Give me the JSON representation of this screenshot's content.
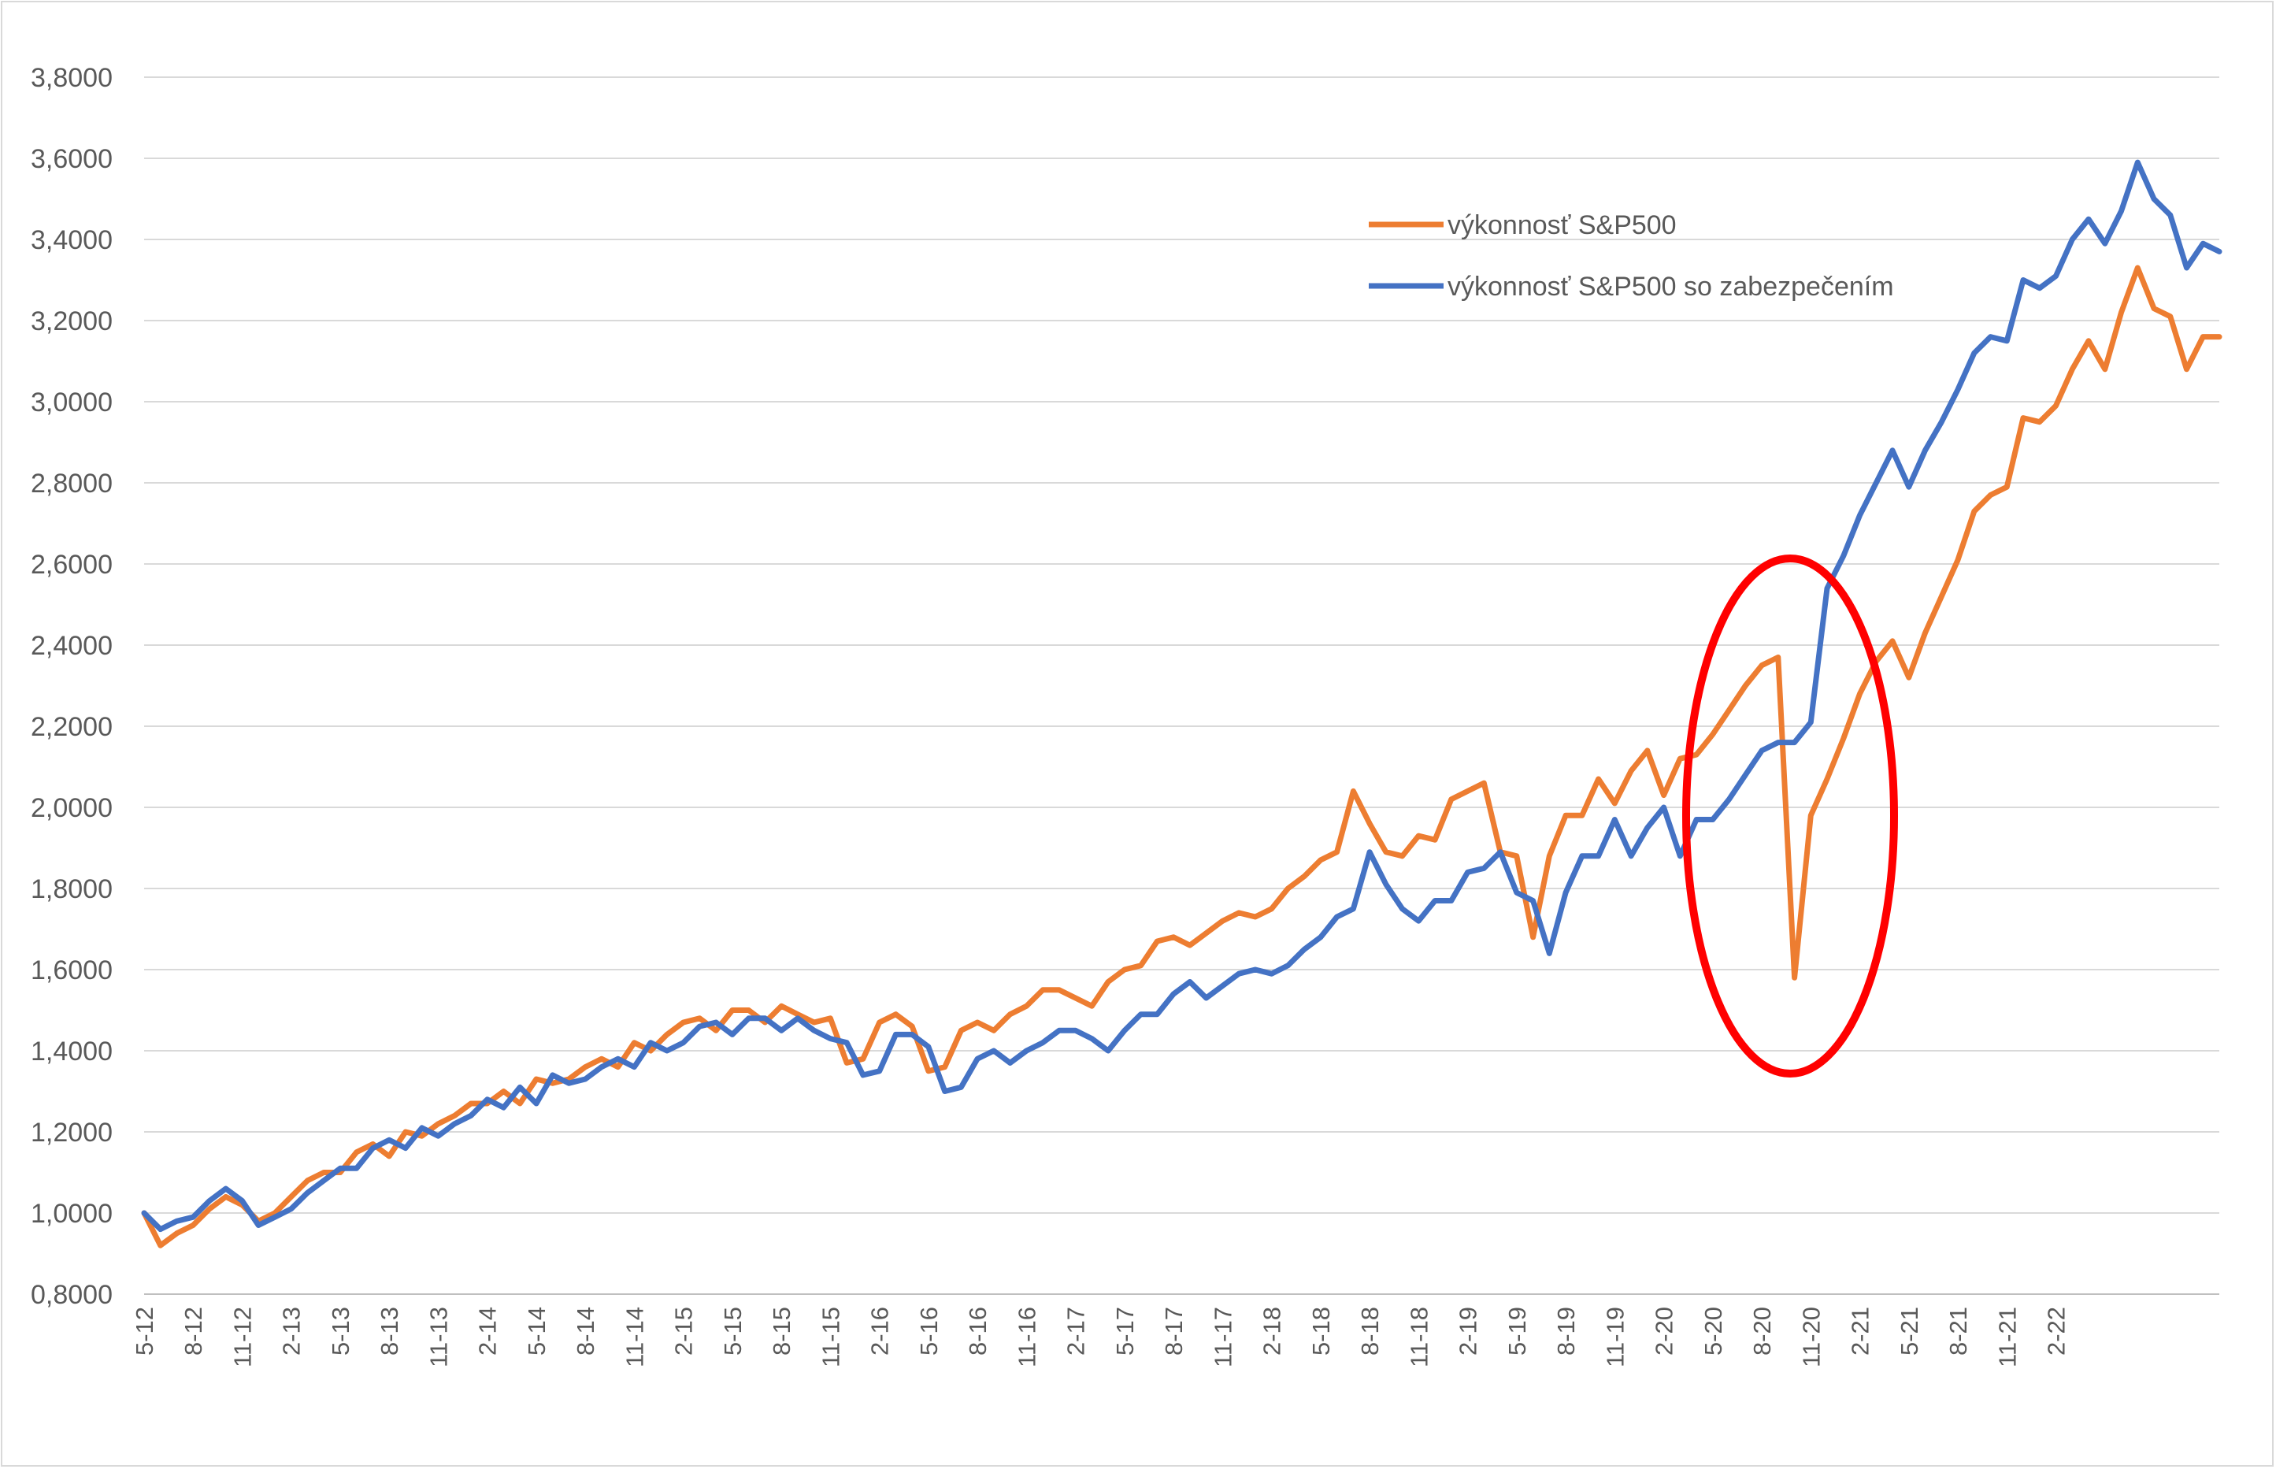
{
  "chart_data": {
    "type": "line",
    "title": "",
    "xlabel": "",
    "ylabel": "",
    "ylim": [
      0.8,
      3.8
    ],
    "yticks": [
      0.8,
      1.0,
      1.2,
      1.4,
      1.6,
      1.8,
      2.0,
      2.2,
      2.4,
      2.6,
      2.8,
      3.0,
      3.2,
      3.4,
      3.6,
      3.8
    ],
    "ytick_labels": [
      "0,8000",
      "1,0000",
      "1,2000",
      "1,4000",
      "1,6000",
      "1,8000",
      "2,0000",
      "2,2000",
      "2,4000",
      "2,6000",
      "2,8000",
      "3,0000",
      "3,2000",
      "3,4000",
      "3,6000",
      "3,8000"
    ],
    "x_tick_labels": [
      "5-12",
      "8-12",
      "11-12",
      "2-13",
      "5-13",
      "8-13",
      "11-13",
      "2-14",
      "5-14",
      "8-14",
      "11-14",
      "2-15",
      "5-15",
      "8-15",
      "11-15",
      "2-16",
      "5-16",
      "8-16",
      "11-16",
      "2-17",
      "5-17",
      "8-17",
      "11-17",
      "2-18",
      "5-18",
      "8-18",
      "11-18",
      "2-19",
      "5-19",
      "8-19",
      "11-19",
      "2-20",
      "5-20",
      "8-20",
      "11-20",
      "2-21",
      "5-21",
      "8-21",
      "11-21",
      "2-22"
    ],
    "grid": true,
    "legend_position": "top-right",
    "annotation": "red-ellipse-around-2020-crash",
    "series": [
      {
        "name": "výkonnosť S&P500",
        "color": "#ED7D31",
        "values": [
          1.0,
          0.92,
          0.95,
          0.97,
          1.01,
          1.04,
          1.02,
          0.98,
          1.0,
          1.04,
          1.08,
          1.1,
          1.1,
          1.15,
          1.17,
          1.14,
          1.2,
          1.19,
          1.22,
          1.24,
          1.27,
          1.27,
          1.3,
          1.27,
          1.33,
          1.32,
          1.33,
          1.36,
          1.38,
          1.36,
          1.42,
          1.4,
          1.44,
          1.47,
          1.48,
          1.45,
          1.5,
          1.5,
          1.47,
          1.51,
          1.49,
          1.47,
          1.48,
          1.37,
          1.38,
          1.47,
          1.49,
          1.46,
          1.35,
          1.36,
          1.45,
          1.47,
          1.45,
          1.49,
          1.51,
          1.55,
          1.55,
          1.53,
          1.51,
          1.57,
          1.6,
          1.61,
          1.67,
          1.68,
          1.66,
          1.69,
          1.72,
          1.74,
          1.73,
          1.75,
          1.8,
          1.83,
          1.87,
          1.89,
          2.04,
          1.96,
          1.89,
          1.88,
          1.93,
          1.92,
          2.02,
          2.04,
          2.06,
          1.89,
          1.88,
          1.68,
          1.88,
          1.98,
          1.98,
          2.07,
          2.01,
          2.09,
          2.14,
          2.03,
          2.12,
          2.13,
          2.18,
          2.24,
          2.3,
          2.35,
          2.37,
          1.58,
          1.98,
          2.07,
          2.17,
          2.28,
          2.36,
          2.41,
          2.32,
          2.43,
          2.52,
          2.61,
          2.73,
          2.77,
          2.79,
          2.96,
          2.95,
          2.99,
          3.08,
          3.15,
          3.08,
          3.22,
          3.33,
          3.23,
          3.21,
          3.08,
          3.16,
          3.16
        ]
      },
      {
        "name": "výkonnosť S&P500 so zabezpečením",
        "color": "#4472C4",
        "values": [
          1.0,
          0.96,
          0.98,
          0.99,
          1.03,
          1.06,
          1.03,
          0.97,
          0.99,
          1.01,
          1.05,
          1.08,
          1.11,
          1.11,
          1.16,
          1.18,
          1.16,
          1.21,
          1.19,
          1.22,
          1.24,
          1.28,
          1.26,
          1.31,
          1.27,
          1.34,
          1.32,
          1.33,
          1.36,
          1.38,
          1.36,
          1.42,
          1.4,
          1.42,
          1.46,
          1.47,
          1.44,
          1.48,
          1.48,
          1.45,
          1.48,
          1.45,
          1.43,
          1.42,
          1.34,
          1.35,
          1.44,
          1.44,
          1.41,
          1.3,
          1.31,
          1.38,
          1.4,
          1.37,
          1.4,
          1.42,
          1.45,
          1.45,
          1.43,
          1.4,
          1.45,
          1.49,
          1.49,
          1.54,
          1.57,
          1.53,
          1.56,
          1.59,
          1.6,
          1.59,
          1.61,
          1.65,
          1.68,
          1.73,
          1.75,
          1.89,
          1.81,
          1.75,
          1.72,
          1.77,
          1.77,
          1.84,
          1.85,
          1.89,
          1.79,
          1.77,
          1.64,
          1.79,
          1.88,
          1.88,
          1.97,
          1.88,
          1.95,
          2.0,
          1.88,
          1.97,
          1.97,
          2.02,
          2.08,
          2.14,
          2.16,
          2.16,
          2.21,
          2.54,
          2.62,
          2.72,
          2.8,
          2.88,
          2.79,
          2.88,
          2.95,
          3.03,
          3.12,
          3.16,
          3.15,
          3.3,
          3.28,
          3.31,
          3.4,
          3.45,
          3.39,
          3.47,
          3.59,
          3.5,
          3.46,
          3.33,
          3.39,
          3.37
        ]
      }
    ]
  }
}
